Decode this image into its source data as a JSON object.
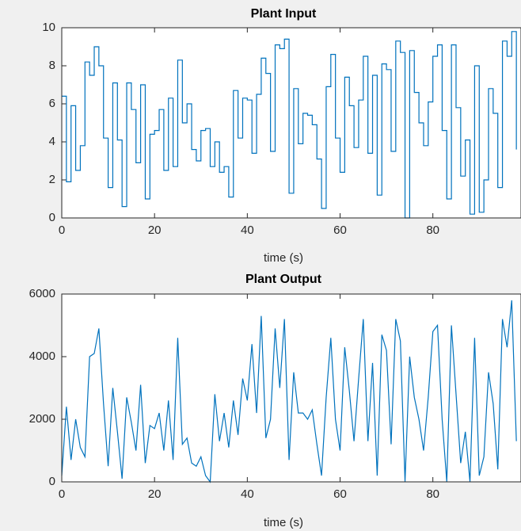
{
  "chart_data": [
    {
      "type": "line",
      "title": "Plant Input",
      "xlabel": "time (s)",
      "drawstyle": "steps-post",
      "xlim": [
        0,
        99
      ],
      "xticks": [
        0,
        20,
        40,
        60,
        80
      ],
      "ylim": [
        0,
        10
      ],
      "yticks": [
        0,
        2,
        4,
        6,
        8,
        10
      ],
      "x": [
        0,
        1,
        2,
        3,
        4,
        5,
        6,
        7,
        8,
        9,
        10,
        11,
        12,
        13,
        14,
        15,
        16,
        17,
        18,
        19,
        20,
        21,
        22,
        23,
        24,
        25,
        26,
        27,
        28,
        29,
        30,
        31,
        32,
        33,
        34,
        35,
        36,
        37,
        38,
        39,
        40,
        41,
        42,
        43,
        44,
        45,
        46,
        47,
        48,
        49,
        50,
        51,
        52,
        53,
        54,
        55,
        56,
        57,
        58,
        59,
        60,
        61,
        62,
        63,
        64,
        65,
        66,
        67,
        68,
        69,
        70,
        71,
        72,
        73,
        74,
        75,
        76,
        77,
        78,
        79,
        80,
        81,
        82,
        83,
        84,
        85,
        86,
        87,
        88,
        89,
        90,
        91,
        92,
        93,
        94,
        95,
        96,
        97,
        98
      ],
      "series": [
        {
          "color": "#0072bd",
          "values": [
            6.4,
            1.9,
            5.9,
            2.5,
            3.8,
            8.2,
            7.5,
            9.0,
            8.0,
            4.2,
            1.6,
            7.1,
            4.1,
            0.6,
            7.1,
            5.7,
            2.9,
            7.0,
            1.0,
            4.4,
            4.6,
            5.7,
            2.5,
            6.3,
            2.7,
            8.3,
            5.0,
            6.0,
            3.6,
            3.0,
            4.6,
            4.7,
            2.7,
            4.0,
            2.4,
            2.7,
            1.1,
            6.7,
            4.2,
            6.3,
            6.2,
            3.4,
            6.5,
            8.4,
            7.6,
            3.5,
            9.1,
            8.9,
            9.4,
            1.3,
            6.8,
            3.9,
            5.5,
            5.4,
            4.9,
            3.1,
            0.5,
            6.9,
            8.6,
            4.2,
            2.4,
            7.4,
            5.9,
            3.7,
            6.2,
            8.5,
            3.4,
            7.5,
            1.2,
            8.1,
            7.8,
            3.5,
            9.3,
            8.7,
            0,
            8.8,
            6.6,
            5.0,
            3.8,
            6.1,
            8.5,
            9.1,
            4.6,
            1.0,
            9.1,
            5.8,
            2.2,
            4.1,
            0.2,
            8.0,
            0.3,
            2.0,
            6.8,
            5.5,
            1.6,
            9.3,
            8.5,
            9.8,
            3.6
          ]
        }
      ]
    },
    {
      "type": "line",
      "title": "Plant Output",
      "xlabel": "time (s)",
      "drawstyle": "smooth",
      "xlim": [
        0,
        99
      ],
      "xticks": [
        0,
        20,
        40,
        60,
        80
      ],
      "ylim": [
        0,
        6000
      ],
      "yticks": [
        0,
        2000,
        4000,
        6000
      ],
      "x": [
        0,
        1,
        2,
        3,
        4,
        5,
        6,
        7,
        8,
        9,
        10,
        11,
        12,
        13,
        14,
        15,
        16,
        17,
        18,
        19,
        20,
        21,
        22,
        23,
        24,
        25,
        26,
        27,
        28,
        29,
        30,
        31,
        32,
        33,
        34,
        35,
        36,
        37,
        38,
        39,
        40,
        41,
        42,
        43,
        44,
        45,
        46,
        47,
        48,
        49,
        50,
        51,
        52,
        53,
        54,
        55,
        56,
        57,
        58,
        59,
        60,
        61,
        62,
        63,
        64,
        65,
        66,
        67,
        68,
        69,
        70,
        71,
        72,
        73,
        74,
        75,
        76,
        77,
        78,
        79,
        80,
        81,
        82,
        83,
        84,
        85,
        86,
        87,
        88,
        89,
        90,
        91,
        92,
        93,
        94,
        95,
        96,
        97,
        98
      ],
      "series": [
        {
          "color": "#0072bd",
          "values": [
            200,
            2400,
            700,
            2000,
            1100,
            800,
            4000,
            4100,
            4900,
            2500,
            500,
            3000,
            1600,
            100,
            2700,
            1900,
            1000,
            3100,
            600,
            1800,
            1700,
            2200,
            1000,
            2600,
            700,
            4600,
            1200,
            1400,
            600,
            500,
            800,
            200,
            0,
            2800,
            1300,
            2200,
            1100,
            2600,
            1500,
            3300,
            2600,
            4400,
            2200,
            5300,
            1400,
            2000,
            4900,
            3000,
            5200,
            700,
            3500,
            2200,
            2200,
            2000,
            2300,
            1200,
            200,
            2700,
            4600,
            2000,
            1000,
            4300,
            2900,
            1300,
            3300,
            5200,
            1300,
            3800,
            200,
            4700,
            4200,
            1200,
            5200,
            4500,
            0,
            4000,
            2700,
            2000,
            1000,
            2700,
            4800,
            5000,
            2000,
            0,
            5000,
            2800,
            600,
            1600,
            0,
            4600,
            200,
            800,
            3500,
            2500,
            400,
            5200,
            4300,
            5800,
            1300
          ]
        }
      ]
    }
  ]
}
